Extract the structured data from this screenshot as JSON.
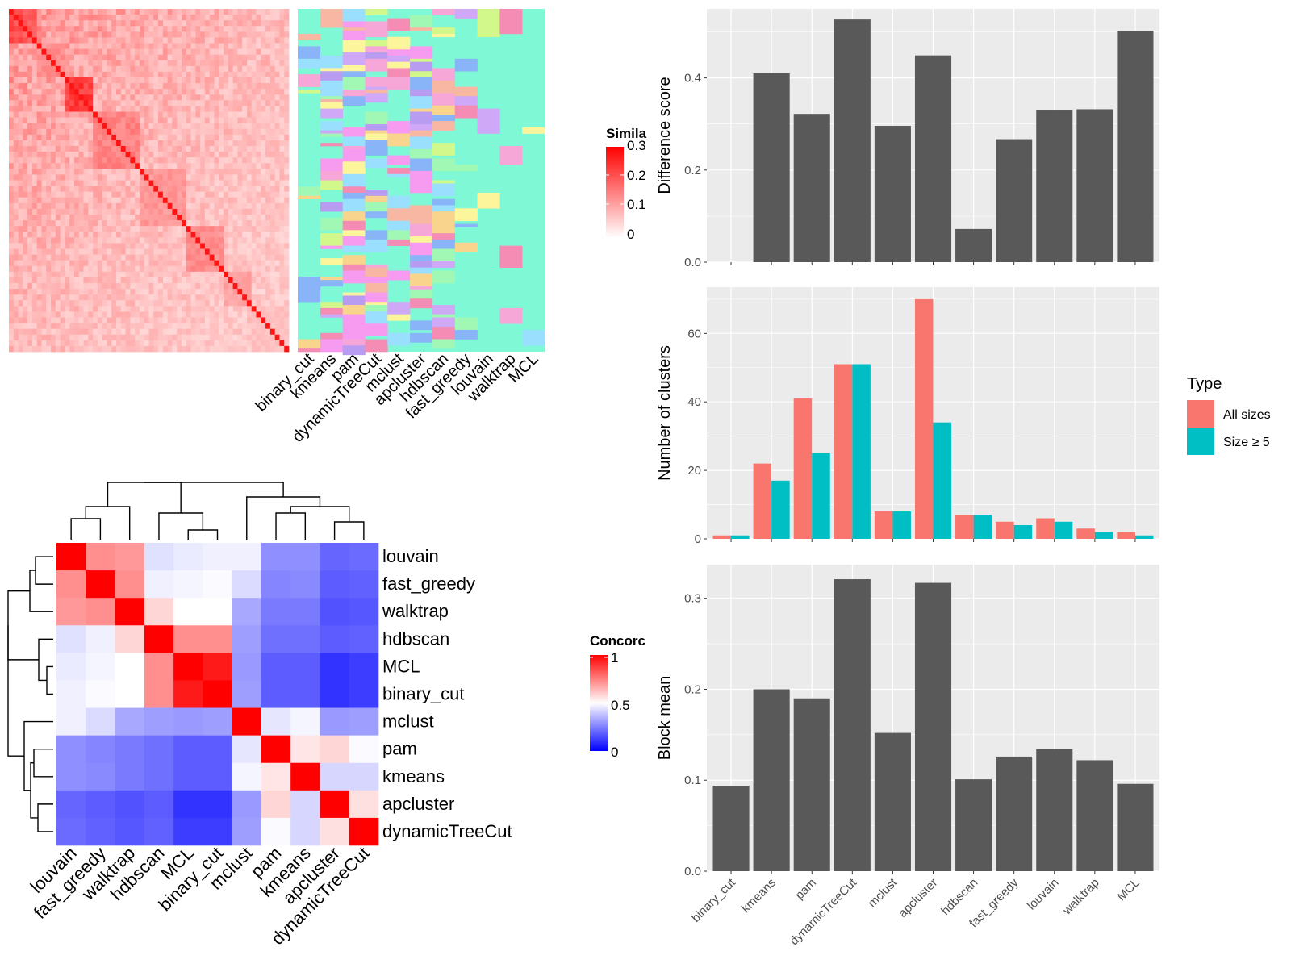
{
  "colors": {
    "panel_bg": "#ebebeb",
    "grid": "#ffffff",
    "bar_fill": "#595959",
    "all_sizes": "#f8766d",
    "size_ge_5": "#00bfc4",
    "heat_high": "#ff0000",
    "heat_mid": "#ffffff",
    "heat_low": "#0000ff"
  },
  "legends": {
    "similarity": {
      "title": "Simila",
      "ticks": [
        "0.3",
        "0.2",
        "0.1",
        "0"
      ]
    },
    "concordance": {
      "title": "Concorc",
      "ticks": [
        "1",
        "0.5",
        "0"
      ]
    },
    "type": {
      "title": "Type",
      "items": [
        "All sizes",
        "Size ≥ 5"
      ]
    }
  },
  "heatmaps": {
    "similarity": {
      "type": "heatmap",
      "description_values": "cell-level similarity matrix",
      "scale": [
        0,
        0.3
      ]
    },
    "class_labels": {
      "type": "heatmap",
      "columns": [
        "binary_cut",
        "kmeans",
        "pam",
        "dynamicTreeCut",
        "mclust",
        "apcluster",
        "hdbscan",
        "fast_greedy",
        "louvain",
        "walktrap",
        "MCL"
      ]
    }
  },
  "chart_data": [
    {
      "type": "heatmap",
      "rows": [
        "louvain",
        "fast_greedy",
        "walktrap",
        "hdbscan",
        "MCL",
        "binary_cut",
        "mclust",
        "pam",
        "kmeans",
        "apcluster",
        "dynamicTreeCut"
      ],
      "cols": [
        "louvain",
        "fast_greedy",
        "walktrap",
        "hdbscan",
        "MCL",
        "binary_cut",
        "mclust",
        "pam",
        "kmeans",
        "apcluster",
        "dynamicTreeCut"
      ],
      "values": [
        [
          1.0,
          0.72,
          0.7,
          0.44,
          0.46,
          0.47,
          0.47,
          0.28,
          0.28,
          0.2,
          0.21
        ],
        [
          0.72,
          1.0,
          0.72,
          0.47,
          0.48,
          0.49,
          0.43,
          0.26,
          0.27,
          0.18,
          0.19
        ],
        [
          0.7,
          0.72,
          1.0,
          0.58,
          0.5,
          0.5,
          0.33,
          0.24,
          0.24,
          0.16,
          0.17
        ],
        [
          0.44,
          0.47,
          0.58,
          1.0,
          0.72,
          0.72,
          0.31,
          0.22,
          0.22,
          0.18,
          0.19
        ],
        [
          0.46,
          0.48,
          0.5,
          0.72,
          1.0,
          0.95,
          0.3,
          0.18,
          0.18,
          0.1,
          0.12
        ],
        [
          0.47,
          0.49,
          0.5,
          0.72,
          0.95,
          1.0,
          0.31,
          0.18,
          0.18,
          0.1,
          0.12
        ],
        [
          0.47,
          0.43,
          0.33,
          0.31,
          0.3,
          0.31,
          1.0,
          0.45,
          0.48,
          0.3,
          0.31
        ],
        [
          0.28,
          0.26,
          0.24,
          0.22,
          0.18,
          0.18,
          0.45,
          1.0,
          0.55,
          0.58,
          0.49
        ],
        [
          0.28,
          0.27,
          0.24,
          0.22,
          0.18,
          0.18,
          0.48,
          0.55,
          1.0,
          0.42,
          0.42
        ],
        [
          0.2,
          0.18,
          0.16,
          0.18,
          0.1,
          0.1,
          0.3,
          0.58,
          0.42,
          1.0,
          0.56
        ],
        [
          0.21,
          0.19,
          0.17,
          0.19,
          0.12,
          0.12,
          0.31,
          0.49,
          0.42,
          0.56,
          1.0
        ]
      ],
      "scale": [
        0,
        1
      ]
    },
    {
      "type": "bar",
      "categories": [
        "binary_cut",
        "kmeans",
        "pam",
        "dynamicTreeCut",
        "mclust",
        "apcluster",
        "hdbscan",
        "fast_greedy",
        "louvain",
        "walktrap",
        "MCL"
      ],
      "values": [
        0,
        0.41,
        0.322,
        0.527,
        0.296,
        0.449,
        0.072,
        0.267,
        0.331,
        0.332,
        0.502
      ],
      "ylabel": "Difference score",
      "ylim": [
        0,
        0.55
      ],
      "yticks": [
        0.0,
        0.2,
        0.4
      ],
      "ytick_labels": [
        "0.0",
        "0.2",
        "0.4"
      ]
    },
    {
      "type": "bar",
      "categories": [
        "binary_cut",
        "kmeans",
        "pam",
        "dynamicTreeCut",
        "mclust",
        "apcluster",
        "hdbscan",
        "fast_greedy",
        "louvain",
        "walktrap",
        "MCL"
      ],
      "series": [
        {
          "name": "All sizes",
          "values": [
            1,
            22,
            41,
            51,
            8,
            70,
            7,
            5,
            6,
            3,
            2
          ]
        },
        {
          "name": "Size ≥ 5",
          "values": [
            1,
            17,
            25,
            51,
            8,
            34,
            7,
            4,
            5,
            2,
            1
          ]
        }
      ],
      "ylabel": "Number of clusters",
      "ylim": [
        0,
        73.5
      ],
      "yticks": [
        0,
        20,
        40,
        60
      ],
      "ytick_labels": [
        "0",
        "20",
        "40",
        "60"
      ],
      "legend_title": "Type"
    },
    {
      "type": "bar",
      "categories": [
        "binary_cut",
        "kmeans",
        "pam",
        "dynamicTreeCut",
        "mclust",
        "apcluster",
        "hdbscan",
        "fast_greedy",
        "louvain",
        "walktrap",
        "MCL"
      ],
      "values": [
        0.094,
        0.2,
        0.19,
        0.321,
        0.152,
        0.317,
        0.101,
        0.126,
        0.134,
        0.122,
        0.096
      ],
      "ylabel": "Block mean",
      "ylim": [
        0,
        0.337
      ],
      "yticks": [
        0.0,
        0.1,
        0.2,
        0.3
      ],
      "ytick_labels": [
        "0.0",
        "0.1",
        "0.2",
        "0.3"
      ]
    }
  ]
}
